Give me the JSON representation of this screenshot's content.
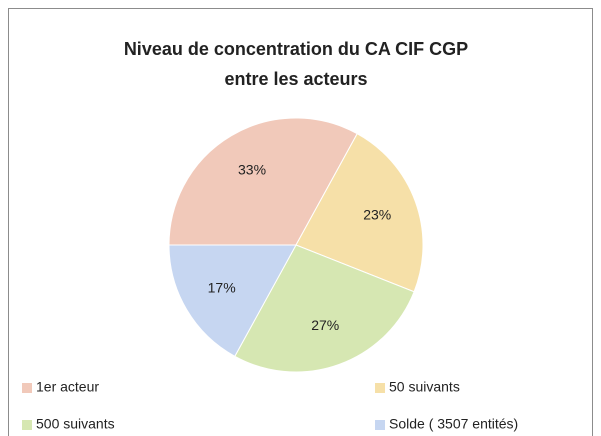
{
  "chart_data": {
    "type": "pie",
    "title": [
      "Niveau de concentration du CA CIF CGP",
      "entre les acteurs"
    ],
    "categories": [
      "1er acteur",
      "50 suivants",
      "500 suivants",
      "Solde ( 3507 entités)"
    ],
    "values": [
      33,
      23,
      27,
      17
    ],
    "value_labels": [
      "33%",
      "23%",
      "27%",
      "17%"
    ],
    "colors": [
      "#f1c9ba",
      "#f6e0a8",
      "#d6e7b2",
      "#c6d6f1"
    ],
    "legend": "bottom"
  }
}
